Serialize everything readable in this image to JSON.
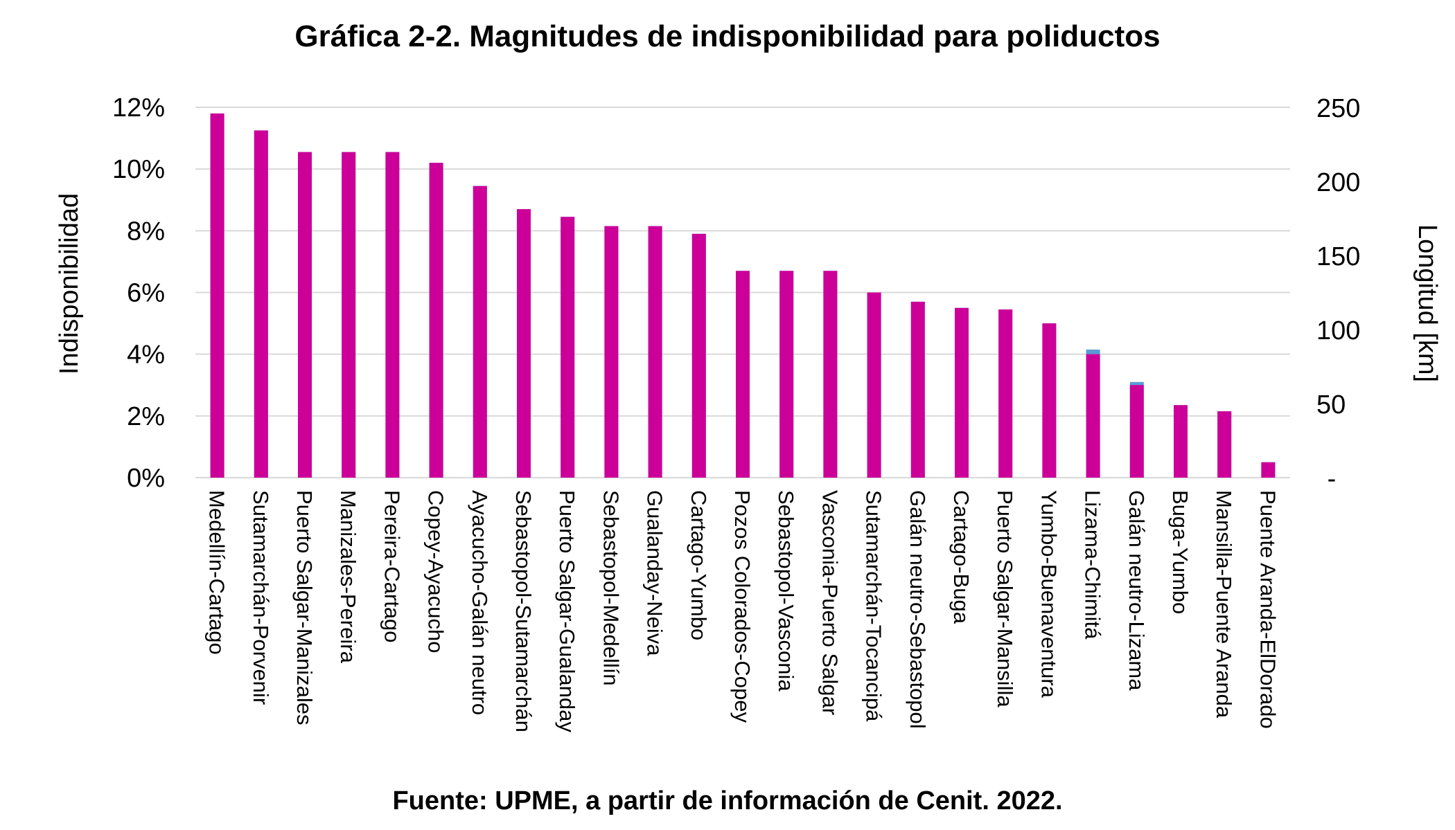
{
  "title": "Gráfica 2-2. Magnitudes de indisponibilidad para poliductos",
  "source": "Fuente: UPME, a partir de información de Cenit. 2022.",
  "colors": {
    "primary": "#cc0099",
    "secondary": "#5b9bd5",
    "grid": "#d9d9d9"
  },
  "chart_data": {
    "type": "bar",
    "ylabel": "Indisponibilidad",
    "y2label": "Longitud [km]",
    "ylim": [
      0,
      12
    ],
    "y2lim": [
      0,
      250
    ],
    "yticks": [
      "0%",
      "2%",
      "4%",
      "6%",
      "8%",
      "10%",
      "12%"
    ],
    "y2ticks": [
      "-",
      "50",
      "100",
      "150",
      "200",
      "250"
    ],
    "grid": true,
    "categories": [
      "Medellín-Cartago",
      "Sutamarchán-Porvenir",
      "Puerto Salgar-Manizales",
      "Manizales-Pereira",
      "Pereira-Cartago",
      "Copey-Ayacucho",
      "Ayacucho-Galán neutro",
      "Sebastopol-Sutamarchán",
      "Puerto Salgar-Gualanday",
      "Sebastopol-Medellín",
      "Gualanday-Neiva",
      "Cartago-Yumbo",
      "Pozos Colorados-Copey",
      "Sebastopol-Vasconia",
      "Vasconia-Puerto Salgar",
      "Sutamarchán-Tocancipá",
      "Galán neutro-Sebastopol",
      "Cartago-Buga",
      "Puerto Salgar-Mansilla",
      "Yumbo-Buenaventura",
      "Lizama-Chimitá",
      "Galán neutro-Lizama",
      "Buga-Yumbo",
      "Mansilla-Puente Aranda",
      "Puente Aranda-ElDorado"
    ],
    "series": [
      {
        "values": [
          11.8,
          11.25,
          10.55,
          10.55,
          10.55,
          10.2,
          9.45,
          8.7,
          8.45,
          8.15,
          8.15,
          7.9,
          6.7,
          6.7,
          6.7,
          6.0,
          5.7,
          5.5,
          5.45,
          5.0,
          4.15,
          3.1,
          2.35,
          2.15,
          0.5
        ]
      },
      {
        "values": [
          11.8,
          11.25,
          10.55,
          10.55,
          10.55,
          10.2,
          9.45,
          8.7,
          8.45,
          8.15,
          8.15,
          7.9,
          6.7,
          6.7,
          6.7,
          6.0,
          5.7,
          5.5,
          5.45,
          5.0,
          4.0,
          3.0,
          2.35,
          2.15,
          0.5
        ]
      }
    ]
  }
}
